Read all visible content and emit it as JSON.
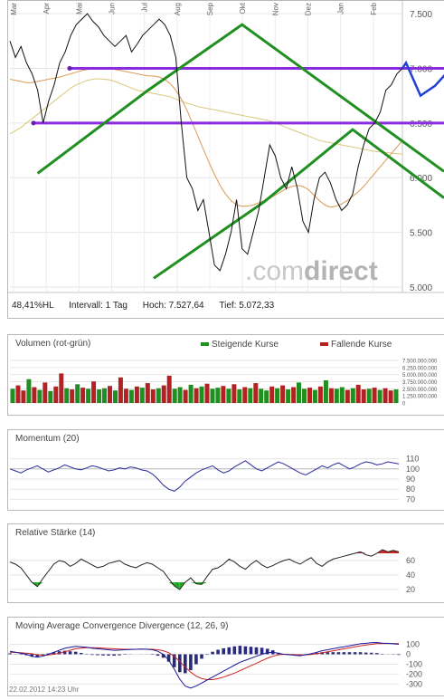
{
  "chart_data": [
    {
      "type": "line",
      "title": "",
      "x_ticks": [
        "Mar",
        "Apr",
        "Mai",
        "Jun",
        "Jul",
        "Aug",
        "Sep",
        "Okt",
        "Nov",
        "Dez",
        "Jan",
        "Feb"
      ],
      "y_ticks": [
        "7.500",
        "7.000",
        "6.500",
        "6.000",
        "5.500",
        "5.000"
      ],
      "ylim": [
        4950,
        7600
      ],
      "series": [
        {
          "values": [
            7250,
            7100,
            7200,
            7050,
            6950,
            6800,
            6500,
            6700,
            6850,
            7050,
            7150,
            7300,
            7400,
            7450,
            7500,
            7430,
            7380,
            7300,
            7250,
            7200,
            7250,
            7300,
            7150,
            7220,
            7300,
            7350,
            7400,
            7450,
            7400,
            7300,
            7100,
            6500,
            6000,
            5900,
            5700,
            5800,
            5500,
            5200,
            5150,
            5300,
            5500,
            5800,
            5350,
            5300,
            5500,
            5700,
            6000,
            6300,
            6200,
            6000,
            5900,
            6100,
            5900,
            5600,
            5500,
            5800,
            6000,
            6050,
            5950,
            5800,
            5700,
            5750,
            5850,
            6100,
            6300,
            6450,
            6500,
            6600,
            6800,
            6850,
            6950,
            7000
          ]
        },
        {
          "values": [
            6400,
            6430,
            6460,
            6500,
            6540,
            6580,
            6620,
            6660,
            6700,
            6740,
            6780,
            6820,
            6850,
            6870,
            6890,
            6900,
            6905,
            6900,
            6895,
            6880,
            6860,
            6840,
            6820,
            6800,
            6790,
            6780,
            6770,
            6760,
            6750,
            6740,
            6720,
            6700,
            6680,
            6670,
            6650,
            6640,
            6630,
            6620,
            6610,
            6600,
            6590,
            6580,
            6570,
            6560,
            6550,
            6540,
            6530,
            6520,
            6500,
            6480,
            6460,
            6440,
            6420,
            6400,
            6380,
            6360,
            6340,
            6330,
            6320,
            6310,
            6300,
            6290,
            6280,
            6270,
            6260,
            6250,
            6240,
            6235,
            6230,
            6225,
            6220,
            6215
          ]
        },
        {
          "values": [
            6900,
            6890,
            6880,
            6870,
            6870,
            6880,
            6890,
            6900,
            6910,
            6920,
            6935,
            6950,
            6965,
            6980,
            6990,
            6995,
            7000,
            7000,
            7000,
            6990,
            6980,
            6970,
            6960,
            6950,
            6940,
            6930,
            6930,
            6920,
            6900,
            6860,
            6800,
            6720,
            6620,
            6500,
            6380,
            6260,
            6140,
            6030,
            5930,
            5850,
            5790,
            5750,
            5740,
            5740,
            5750,
            5770,
            5790,
            5810,
            5840,
            5870,
            5900,
            5920,
            5930,
            5920,
            5890,
            5840,
            5790,
            5750,
            5730,
            5740,
            5760,
            5790,
            5830,
            5870,
            5920,
            5980,
            6040,
            6100,
            6160,
            6220,
            6280,
            6340
          ]
        }
      ],
      "channel_lines": [
        {
          "color": "#1f8f1f",
          "points": [
            [
              5,
              6040
            ],
            [
              25,
              6800
            ],
            [
              42,
              7400
            ]
          ]
        },
        {
          "color": "#1f8f1f",
          "points": [
            [
              26,
              5080
            ],
            [
              46,
              5780
            ],
            [
              62,
              6440
            ]
          ]
        }
      ],
      "horizontal_lines": [
        7000,
        6500
      ],
      "projection": [
        [
          6970,
          7050
        ],
        [
          7030,
          6750
        ],
        [
          6700,
          6840
        ]
      ],
      "stats": {
        "hl": "48,41%HL",
        "interval": "Intervall: 1 Tag",
        "high": "Hoch:  7.527,64",
        "low": "Tief:  5.072,33"
      },
      "watermark_a": ".com",
      "watermark_b": "direct"
    },
    {
      "type": "bar",
      "title": "Volumen (rot-grün)",
      "legend": [
        "Steigende Kurse",
        "Fallende Kurse"
      ],
      "colors": {
        "up": "#1f8f1f",
        "down": "#b22222"
      },
      "y_ticks": [
        "7.500.000.000",
        "6.250.000.000",
        "5.000.000.000",
        "3.750.000.000",
        "2.500.000.000",
        "1.250.000.000",
        "0"
      ],
      "ylim": [
        0,
        7500000000
      ],
      "values": [
        2500000000,
        3100000000,
        2200000000,
        4200000000,
        2800000000,
        2300000000,
        3600000000,
        2100000000,
        2900000000,
        5200000000,
        2600000000,
        2400000000,
        3300000000,
        2700000000,
        2500000000,
        3800000000,
        2400000000,
        2600000000,
        3000000000,
        2200000000,
        4500000000,
        2500000000,
        2300000000,
        2900000000,
        2700000000,
        3500000000,
        2400000000,
        2600000000,
        3100000000,
        4800000000,
        2500000000,
        2800000000,
        2300000000,
        3200000000,
        2600000000,
        2900000000,
        3400000000,
        2500000000,
        2700000000,
        3000000000,
        2500000000,
        3300000000,
        2400000000,
        2800000000,
        2600000000,
        3500000000,
        2500000000,
        2200000000,
        2900000000,
        2600000000,
        3100000000,
        2400000000,
        2800000000,
        3600000000,
        2500000000,
        2700000000,
        2300000000,
        2900000000,
        4000000000,
        2600000000,
        2500000000,
        2800000000,
        2300000000,
        2600000000,
        3200000000,
        2400000000,
        2500000000,
        2700000000,
        2300000000,
        2600000000,
        2200000000,
        2400000000
      ],
      "directions": [
        "up",
        "down",
        "down",
        "up",
        "down",
        "up",
        "down",
        "up",
        "down",
        "down",
        "up",
        "down",
        "up",
        "down",
        "up",
        "down",
        "up",
        "up",
        "down",
        "up",
        "down",
        "down",
        "up",
        "down",
        "up",
        "down",
        "down",
        "up",
        "down",
        "down",
        "up",
        "up",
        "down",
        "up",
        "down",
        "up",
        "down",
        "up",
        "up",
        "down",
        "up",
        "down",
        "up",
        "down",
        "up",
        "down",
        "up",
        "up",
        "down",
        "up",
        "down",
        "up",
        "down",
        "up",
        "up",
        "down",
        "up",
        "down",
        "up",
        "down",
        "up",
        "up",
        "down",
        "up",
        "down",
        "down",
        "up",
        "down",
        "up",
        "down",
        "down",
        "up"
      ]
    },
    {
      "type": "line",
      "title": "Momentum (20)",
      "y_ticks": [
        "110",
        "100",
        "90",
        "80",
        "70"
      ],
      "ylim": [
        65,
        115
      ],
      "series": [
        {
          "values": [
            100,
            98,
            96,
            99,
            101,
            103,
            100,
            97,
            99,
            101,
            104,
            102,
            100,
            99,
            101,
            103,
            102,
            100,
            98,
            99,
            101,
            100,
            102,
            101,
            99,
            98,
            95,
            90,
            84,
            80,
            78,
            82,
            88,
            92,
            96,
            99,
            101,
            103,
            99,
            96,
            98,
            102,
            105,
            108,
            104,
            100,
            98,
            101,
            104,
            107,
            105,
            102,
            99,
            96,
            94,
            97,
            100,
            103,
            101,
            104,
            106,
            103,
            100,
            102,
            105,
            107,
            106,
            104,
            105,
            107,
            106,
            105
          ]
        }
      ]
    },
    {
      "type": "area",
      "title": "Relative Stärke (14)",
      "y_ticks": [
        "60",
        "40",
        "20"
      ],
      "ylim": [
        10,
        80
      ],
      "bands": {
        "upper": 70,
        "lower": 30
      },
      "colors": {
        "upper": "#cc2222",
        "lower": "#22aa22"
      },
      "series": [
        {
          "values": [
            58,
            55,
            50,
            40,
            30,
            24,
            35,
            45,
            55,
            60,
            58,
            52,
            56,
            62,
            58,
            54,
            50,
            52,
            56,
            58,
            60,
            55,
            52,
            50,
            54,
            57,
            55,
            50,
            45,
            35,
            25,
            20,
            30,
            36,
            28,
            27,
            38,
            48,
            50,
            55,
            62,
            58,
            52,
            48,
            55,
            60,
            54,
            50,
            53,
            57,
            60,
            62,
            58,
            55,
            60,
            64,
            56,
            52,
            58,
            62,
            64,
            66,
            68,
            70,
            72,
            68,
            66,
            70,
            75,
            72,
            74,
            72
          ]
        }
      ]
    },
    {
      "type": "line",
      "title": "Moving Average Convergence Divergence (12, 26, 9)",
      "y_ticks": [
        "100",
        "0",
        "-100",
        "-200",
        "-300"
      ],
      "ylim": [
        -360,
        150
      ],
      "series": [
        {
          "values": [
            30,
            20,
            10,
            0,
            -20,
            -30,
            -20,
            0,
            20,
            40,
            60,
            70,
            80,
            75,
            70,
            60,
            55,
            50,
            45,
            40,
            42,
            45,
            48,
            50,
            52,
            50,
            45,
            30,
            0,
            -60,
            -150,
            -250,
            -320,
            -340,
            -320,
            -290,
            -260,
            -230,
            -200,
            -170,
            -140,
            -110,
            -80,
            -60,
            -40,
            -20,
            0,
            15,
            20,
            10,
            0,
            -5,
            -10,
            -15,
            -5,
            5,
            20,
            35,
            45,
            55,
            65,
            75,
            85,
            95,
            105,
            110,
            115,
            118,
            112,
            110,
            105,
            100
          ]
        },
        {
          "values": [
            20,
            18,
            15,
            10,
            5,
            -5,
            -10,
            -8,
            0,
            10,
            25,
            40,
            55,
            62,
            66,
            66,
            64,
            62,
            58,
            55,
            52,
            50,
            50,
            50,
            51,
            51,
            50,
            45,
            35,
            15,
            -20,
            -70,
            -130,
            -180,
            -220,
            -245,
            -255,
            -255,
            -245,
            -230,
            -210,
            -190,
            -165,
            -140,
            -115,
            -90,
            -65,
            -40,
            -20,
            -5,
            0,
            -2,
            -4,
            -6,
            -6,
            -3,
            5,
            14,
            24,
            34,
            44,
            54,
            64,
            74,
            84,
            93,
            100,
            106,
            108,
            109,
            108,
            106
          ]
        }
      ],
      "histogram": [
        10,
        2,
        -5,
        -10,
        -25,
        -25,
        -10,
        8,
        20,
        30,
        35,
        30,
        25,
        13,
        4,
        -6,
        -9,
        -12,
        -13,
        -15,
        -10,
        -5,
        -2,
        0,
        1,
        -1,
        -5,
        -15,
        -35,
        -75,
        -130,
        -180,
        -190,
        -160,
        -100,
        -45,
        -5,
        25,
        45,
        60,
        70,
        80,
        85,
        80,
        75,
        70,
        65,
        55,
        40,
        15,
        0,
        -3,
        -6,
        -9,
        1,
        8,
        15,
        21,
        21,
        21,
        21,
        21,
        21,
        21,
        21,
        17,
        15,
        12,
        4,
        1,
        -3,
        -6
      ],
      "colors": {
        "macd": "#1a1a9a",
        "signal": "#cc2222",
        "histogram": "#2a2a7a"
      },
      "timestamp": "22.02.2012 14:23 Uhr"
    }
  ]
}
